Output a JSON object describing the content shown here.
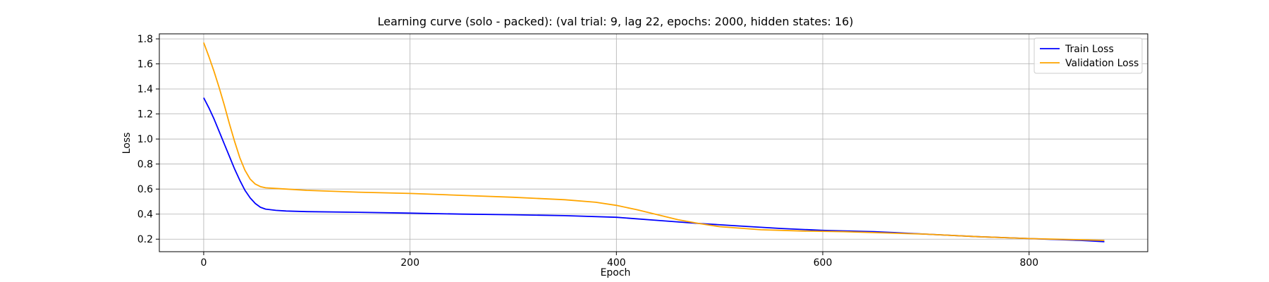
{
  "chart_data": {
    "type": "line",
    "title": "Learning curve (solo - packed): (val trial: 9, lag 22, epochs: 2000, hidden states: 16)",
    "xlabel": "Epoch",
    "ylabel": "Loss",
    "xlim": [
      -43,
      915
    ],
    "ylim": [
      0.1,
      1.84
    ],
    "xticks": [
      0,
      200,
      400,
      600,
      800
    ],
    "yticks": [
      0.2,
      0.4,
      0.6,
      0.8,
      1.0,
      1.2,
      1.4,
      1.6,
      1.8
    ],
    "xtick_labels": [
      "0",
      "200",
      "400",
      "600",
      "800"
    ],
    "ytick_labels": [
      "0.2",
      "0.4",
      "0.6",
      "0.8",
      "1.0",
      "1.2",
      "1.4",
      "1.6",
      "1.8"
    ],
    "grid": true,
    "legend_position": "upper right",
    "series": [
      {
        "name": "Train Loss",
        "color": "#0000ff",
        "x": [
          0,
          5,
          10,
          15,
          20,
          25,
          30,
          35,
          40,
          45,
          50,
          55,
          60,
          70,
          80,
          100,
          150,
          200,
          250,
          300,
          350,
          400,
          440,
          480,
          520,
          560,
          600,
          650,
          700,
          750,
          800,
          850,
          873
        ],
        "y": [
          1.33,
          1.25,
          1.16,
          1.06,
          0.96,
          0.86,
          0.76,
          0.67,
          0.59,
          0.53,
          0.485,
          0.455,
          0.44,
          0.43,
          0.425,
          0.42,
          0.415,
          0.408,
          0.4,
          0.395,
          0.388,
          0.375,
          0.35,
          0.325,
          0.305,
          0.285,
          0.27,
          0.26,
          0.24,
          0.22,
          0.205,
          0.19,
          0.18
        ]
      },
      {
        "name": "Validation Loss",
        "color": "#ffa500",
        "x": [
          0,
          5,
          10,
          15,
          20,
          25,
          30,
          35,
          40,
          45,
          50,
          55,
          60,
          70,
          80,
          100,
          150,
          200,
          250,
          300,
          350,
          380,
          400,
          420,
          440,
          460,
          480,
          500,
          540,
          580,
          620,
          660,
          700,
          750,
          800,
          850,
          873
        ],
        "y": [
          1.77,
          1.66,
          1.54,
          1.41,
          1.27,
          1.12,
          0.98,
          0.85,
          0.75,
          0.68,
          0.64,
          0.62,
          0.61,
          0.605,
          0.6,
          0.59,
          0.575,
          0.565,
          0.55,
          0.535,
          0.515,
          0.495,
          0.47,
          0.435,
          0.395,
          0.355,
          0.325,
          0.3,
          0.275,
          0.265,
          0.26,
          0.25,
          0.24,
          0.22,
          0.205,
          0.195,
          0.19
        ]
      }
    ]
  }
}
